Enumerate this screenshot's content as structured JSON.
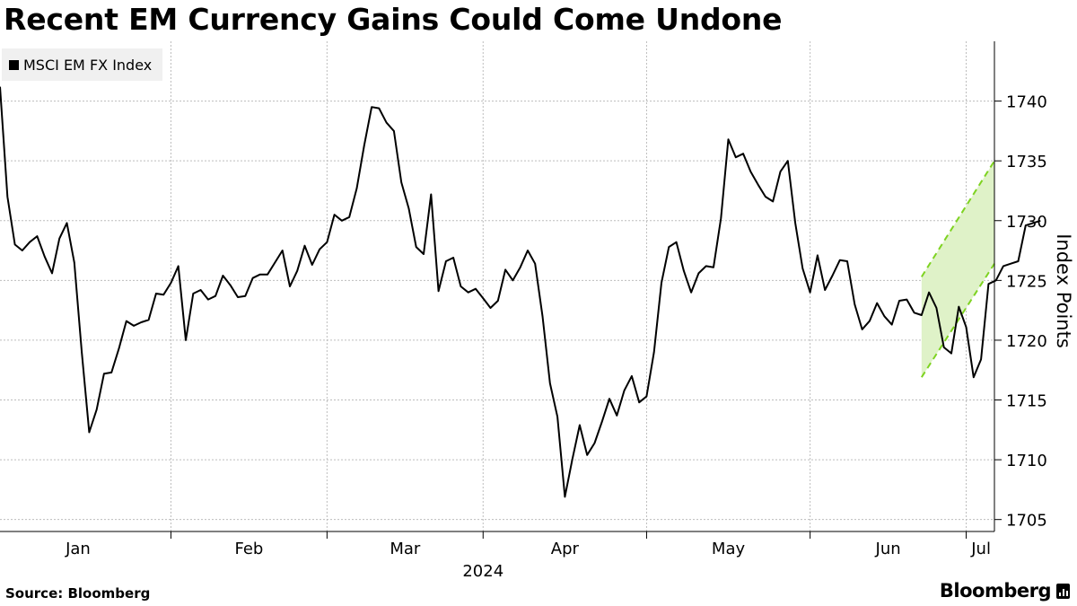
{
  "header": {
    "title": "Recent EM Currency Gains Could Come Undone"
  },
  "footer": {
    "source": "Source: Bloomberg",
    "brand": "Bloomberg"
  },
  "colors": {
    "line": "#000000",
    "channel_fill": "#dff2c8",
    "channel_border": "#7ed321",
    "grid": "#bdbdbd"
  },
  "chart_data": {
    "type": "line",
    "title": "Recent EM Currency Gains Could Come Undone",
    "ylabel": "Index Points",
    "xlabel": "2024",
    "ylim": [
      1704,
      1745
    ],
    "yticks": [
      1705,
      1710,
      1715,
      1720,
      1725,
      1730,
      1735,
      1740
    ],
    "x_range": [
      0,
      133.8
    ],
    "months": [
      {
        "label": "Jan",
        "x": 0
      },
      {
        "label": "Feb",
        "x": 23
      },
      {
        "label": "Mar",
        "x": 44
      },
      {
        "label": "Apr",
        "x": 65
      },
      {
        "label": "May",
        "x": 87
      },
      {
        "label": "Jun",
        "x": 109
      },
      {
        "label": "Jul",
        "x": 130
      }
    ],
    "month_label_x": [
      10.5,
      33.5,
      54.5,
      76,
      98,
      119.5,
      132
    ],
    "year_label": {
      "text": "2024",
      "x": 65
    },
    "legend": [
      {
        "name": "MSCI EM FX Index"
      }
    ],
    "series": [
      {
        "name": "MSCI EM FX Index",
        "values": [
          1741.2,
          1732.0,
          1728.0,
          1727.5,
          1728.2,
          1728.7,
          1727.0,
          1725.6,
          1728.5,
          1729.8,
          1726.5,
          1719.0,
          1712.3,
          1714.2,
          1717.2,
          1717.3,
          1719.3,
          1721.6,
          1721.2,
          1721.5,
          1721.7,
          1723.9,
          1723.8,
          1724.8,
          1726.2,
          1720.0,
          1723.9,
          1724.2,
          1723.4,
          1723.7,
          1725.4,
          1724.6,
          1723.6,
          1723.7,
          1725.2,
          1725.5,
          1725.5,
          1726.5,
          1727.5,
          1724.5,
          1725.8,
          1727.9,
          1726.3,
          1727.6,
          1728.2,
          1730.5,
          1730.0,
          1730.3,
          1732.7,
          1736.3,
          1739.5,
          1739.4,
          1738.2,
          1737.5,
          1733.2,
          1731.0,
          1727.8,
          1727.2,
          1732.2,
          1724.1,
          1726.6,
          1726.9,
          1724.5,
          1724.0,
          1724.3,
          1723.5,
          1722.7,
          1723.3,
          1725.9,
          1725.0,
          1726.1,
          1727.5,
          1726.4,
          1722.0,
          1716.4,
          1713.6,
          1706.9,
          1710.0,
          1712.9,
          1710.4,
          1711.4,
          1713.2,
          1715.1,
          1713.7,
          1715.8,
          1717.0,
          1714.8,
          1715.3,
          1719.0,
          1724.8,
          1727.8,
          1728.2,
          1725.8,
          1724.0,
          1725.6,
          1726.2,
          1726.1,
          1730.2,
          1736.8,
          1735.3,
          1735.6,
          1734.1,
          1733.0,
          1732.0,
          1731.6,
          1734.1,
          1735.0,
          1729.8,
          1726.0,
          1724.0,
          1727.1,
          1724.2,
          1725.4,
          1726.7,
          1726.6,
          1723.0,
          1720.9,
          1721.6,
          1723.1,
          1722.0,
          1721.3,
          1723.3,
          1723.4,
          1722.3,
          1722.1,
          1724.0,
          1722.7,
          1719.4,
          1718.9,
          1722.8,
          1721.1,
          1716.9,
          1718.4,
          1724.7,
          1725.0,
          1726.2,
          1726.4,
          1726.6,
          1729.6,
          1729.8,
          1730.0
        ]
      }
    ],
    "channel": {
      "x_start": 124,
      "x_end": 133.8,
      "upper": [
        1725.3,
        1735.0
      ],
      "lower": [
        1716.9,
        1726.4
      ]
    }
  }
}
